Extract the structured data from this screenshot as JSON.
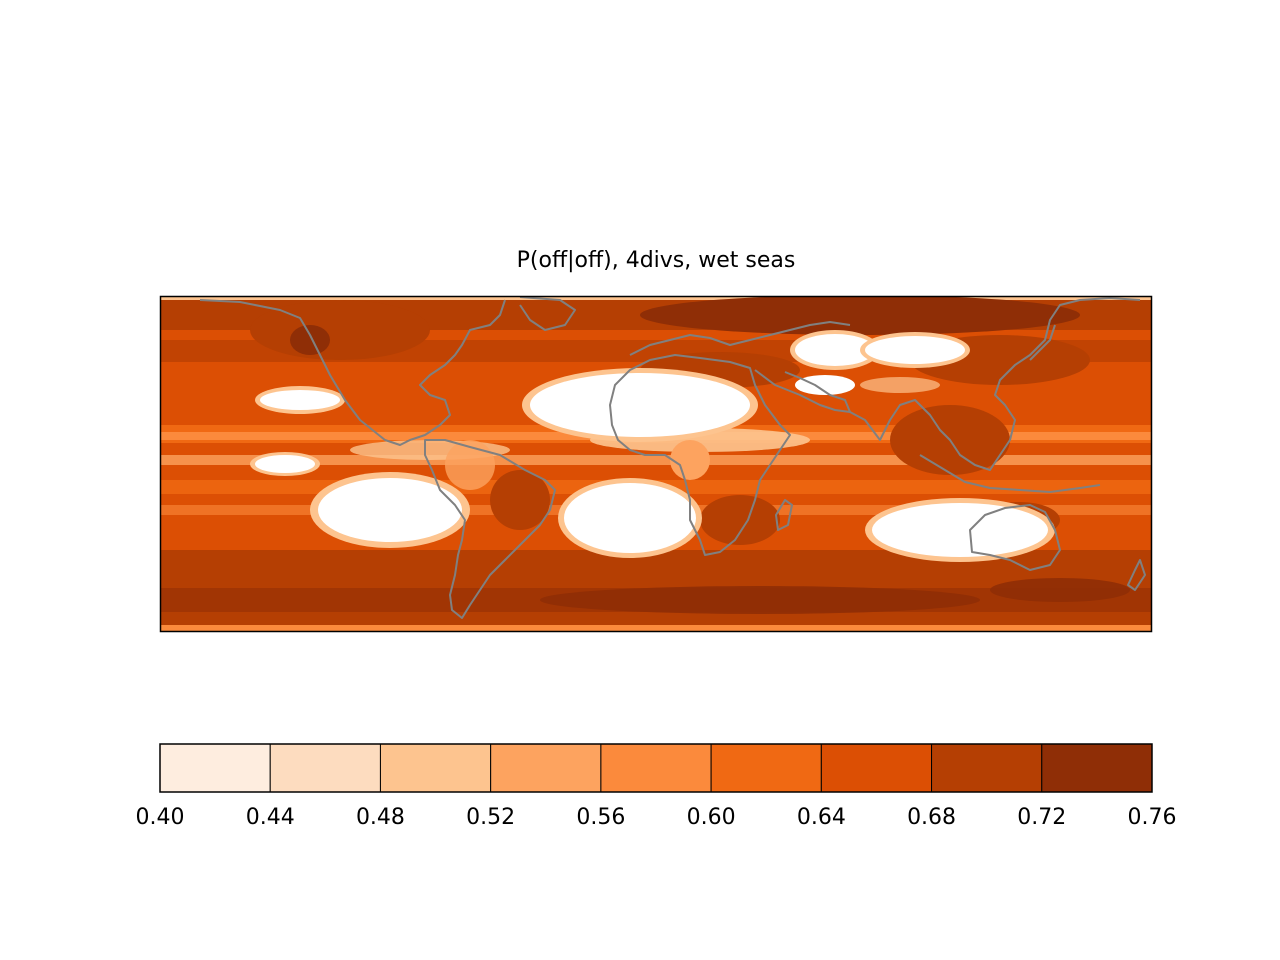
{
  "map": {
    "title": "P(off|off), 4divs, wet seas",
    "field_colors": {
      "land_dry": "#ffffff",
      "coastline": "#808080",
      "frame": "#000000"
    }
  },
  "colorbar": {
    "boundaries": [
      0.4,
      0.44,
      0.48,
      0.52,
      0.56,
      0.6,
      0.64,
      0.68,
      0.72,
      0.76
    ],
    "tick_labels": [
      "0.40",
      "0.44",
      "0.48",
      "0.52",
      "0.56",
      "0.60",
      "0.64",
      "0.68",
      "0.72",
      "0.76"
    ],
    "colors": [
      "#feeddf",
      "#fddcbf",
      "#fdc48f",
      "#fda35f",
      "#fb8a3c",
      "#f06913",
      "#dc4f04",
      "#b53f03",
      "#8f2e06"
    ]
  }
}
